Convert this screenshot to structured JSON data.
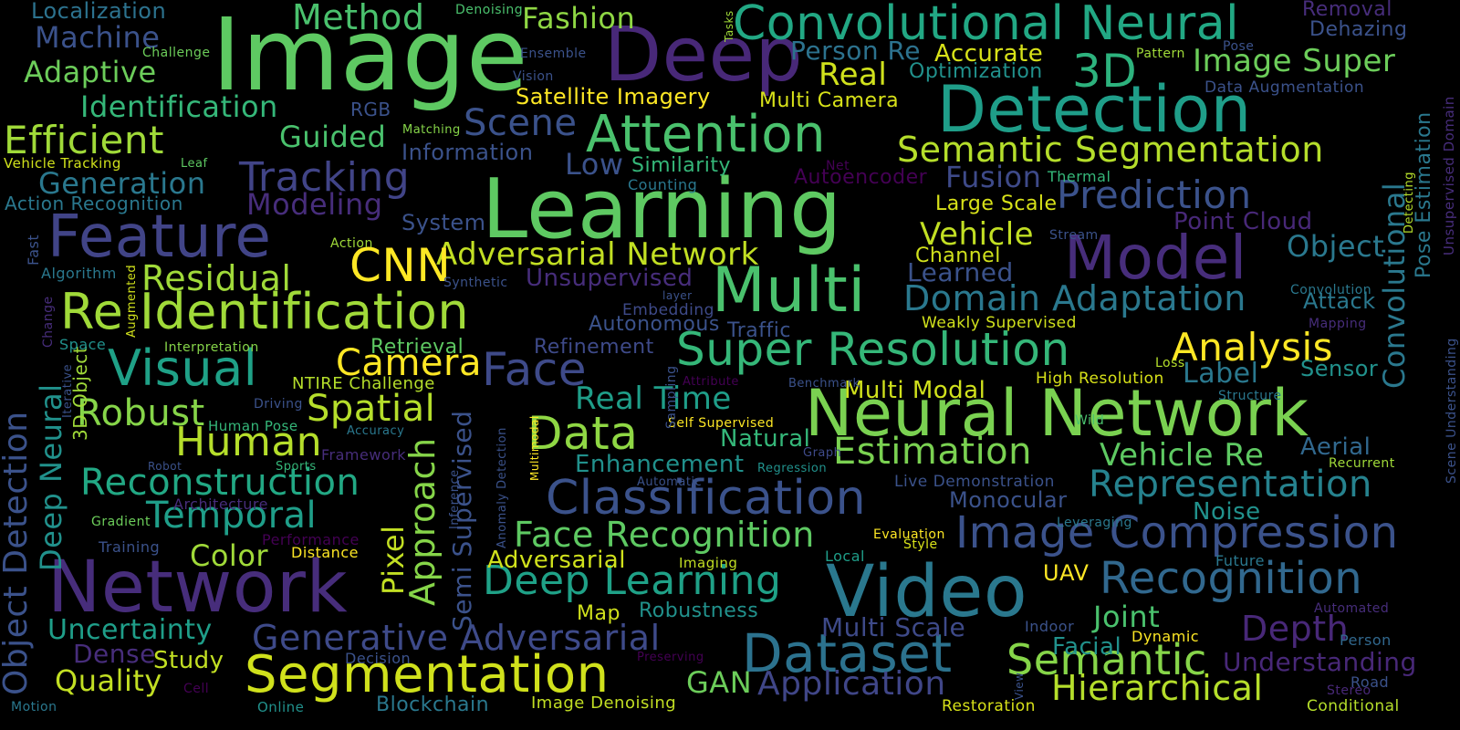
{
  "palette": [
    "#440154",
    "#3b528b",
    "#21918c",
    "#5ec962",
    "#fde725"
  ],
  "words": [
    {
      "text": "Image",
      "color": "#5ec962"
    },
    {
      "text": "Deep",
      "color": "#482878"
    },
    {
      "text": "Learning",
      "color": "#5ec962"
    },
    {
      "text": "Convolutional Neural",
      "color": "#22a884"
    },
    {
      "text": "Detection",
      "color": "#1f9e89"
    },
    {
      "text": "Neural Network",
      "color": "#7ad151"
    },
    {
      "text": "Network",
      "color": "#472d7b"
    },
    {
      "text": "Video",
      "color": "#2a788e"
    },
    {
      "text": "Feature",
      "color": "#414487"
    },
    {
      "text": "Multi",
      "color": "#4ac16d"
    },
    {
      "text": "Model",
      "color": "#472d7b"
    },
    {
      "text": "Re Identification",
      "color": "#a0da39"
    },
    {
      "text": "Attention",
      "color": "#4ac16d"
    },
    {
      "text": "Segmentation",
      "color": "#d0e11c"
    },
    {
      "text": "Classification",
      "color": "#3b528b"
    },
    {
      "text": "Dataset",
      "color": "#2c728e"
    },
    {
      "text": "Super Resolution",
      "color": "#35b779"
    },
    {
      "text": "Image Compression",
      "color": "#3b528b"
    },
    {
      "text": "Recognition",
      "color": "#31688e"
    },
    {
      "text": "Data",
      "color": "#8fd744"
    },
    {
      "text": "Visual",
      "color": "#1fa187"
    },
    {
      "text": "Face",
      "color": "#3e4a89"
    },
    {
      "text": "Semantic Segmentation",
      "color": "#b5de2b"
    },
    {
      "text": "Adversarial Network",
      "color": "#c2df23"
    },
    {
      "text": "Prediction",
      "color": "#3b528b"
    },
    {
      "text": "Estimation",
      "color": "#7ad151"
    },
    {
      "text": "Semantic",
      "color": "#86d549"
    },
    {
      "text": "Tracking",
      "color": "#414487"
    },
    {
      "text": "Efficient",
      "color": "#a0da39"
    },
    {
      "text": "Domain Adaptation",
      "color": "#2a788e"
    },
    {
      "text": "Representation",
      "color": "#26828e"
    },
    {
      "text": "Face Recognition",
      "color": "#5ec962"
    },
    {
      "text": "Deep Learning",
      "color": "#1fa187"
    },
    {
      "text": "Generative Adversarial",
      "color": "#3e4a89"
    },
    {
      "text": "Reconstruction",
      "color": "#22a884"
    },
    {
      "text": "Method",
      "color": "#4ac16d"
    },
    {
      "text": "Fashion",
      "color": "#8fd744"
    },
    {
      "text": "3D",
      "color": "#2db27d"
    },
    {
      "text": "Image Super",
      "color": "#6ccd5a"
    },
    {
      "text": "Analysis",
      "color": "#fde725"
    },
    {
      "text": "Scene",
      "color": "#3b528b"
    },
    {
      "text": "Human",
      "color": "#b5de2b"
    },
    {
      "text": "Temporal",
      "color": "#1f9e89"
    },
    {
      "text": "Residual",
      "color": "#a0da39"
    },
    {
      "text": "Vehicle Re",
      "color": "#5ec962"
    },
    {
      "text": "Camera",
      "color": "#fde725"
    },
    {
      "text": "Spatial",
      "color": "#b5de2b"
    },
    {
      "text": "Robust",
      "color": "#86d549"
    },
    {
      "text": "Depth",
      "color": "#482878"
    },
    {
      "text": "Hierarchical",
      "color": "#b5de2b"
    },
    {
      "text": "Application",
      "color": "#404688"
    },
    {
      "text": "Real Time",
      "color": "#1f9e89"
    },
    {
      "text": "CNN",
      "color": "#fde725"
    },
    {
      "text": "Vehicle",
      "color": "#c2df23"
    },
    {
      "text": "Object",
      "color": "#2a788e"
    },
    {
      "text": "Uncertainty",
      "color": "#1f9e89"
    },
    {
      "text": "Quality",
      "color": "#c2df23"
    },
    {
      "text": "Guided",
      "color": "#4ac16d"
    },
    {
      "text": "Fusion",
      "color": "#3e4a89"
    },
    {
      "text": "Joint",
      "color": "#4ac16d"
    },
    {
      "text": "Color",
      "color": "#a0da39"
    },
    {
      "text": "Identification",
      "color": "#35b779"
    },
    {
      "text": "Generation",
      "color": "#2a788e"
    },
    {
      "text": "Modeling",
      "color": "#472d7b"
    },
    {
      "text": "Machine",
      "color": "#3b528b"
    },
    {
      "text": "Adaptive",
      "color": "#6ccd5a"
    },
    {
      "text": "Real",
      "color": "#d0e11c"
    },
    {
      "text": "Person Re",
      "color": "#2c728e"
    },
    {
      "text": "Accurate",
      "color": "#d8e219"
    },
    {
      "text": "Localization",
      "color": "#2c728e"
    },
    {
      "text": "Low",
      "color": "#3b528b"
    },
    {
      "text": "Information",
      "color": "#3b528b"
    },
    {
      "text": "Similarity",
      "color": "#35b779"
    },
    {
      "text": "Satellite Imagery",
      "color": "#fde725"
    },
    {
      "text": "Multi Camera",
      "color": "#d8e219"
    },
    {
      "text": "Optimization",
      "color": "#21918c"
    },
    {
      "text": "Enhancement",
      "color": "#21918c"
    },
    {
      "text": "Multi Scale",
      "color": "#3e4a89"
    },
    {
      "text": "Adversarial",
      "color": "#d0e11c"
    },
    {
      "text": "Robustness",
      "color": "#21918c"
    },
    {
      "text": "Blockchain",
      "color": "#2a788e"
    },
    {
      "text": "GAN",
      "color": "#6ccd5a"
    },
    {
      "text": "Label",
      "color": "#2a788e"
    },
    {
      "text": "Aerial",
      "color": "#31688e"
    },
    {
      "text": "Multi Modal",
      "color": "#d0e11c"
    },
    {
      "text": "Learned",
      "color": "#3b528b"
    },
    {
      "text": "Channel",
      "color": "#d0e11c"
    },
    {
      "text": "Large Scale",
      "color": "#d8e219"
    },
    {
      "text": "Point Cloud",
      "color": "#482878"
    },
    {
      "text": "Unsupervised",
      "color": "#472d7b"
    },
    {
      "text": "Autonomous",
      "color": "#3b528b"
    },
    {
      "text": "Retrieval",
      "color": "#5ec962"
    },
    {
      "text": "Refinement",
      "color": "#3e4a89"
    },
    {
      "text": "Natural",
      "color": "#35b779"
    },
    {
      "text": "Monocular",
      "color": "#3b528b"
    },
    {
      "text": "Noise",
      "color": "#21918c"
    },
    {
      "text": "Facial",
      "color": "#21918c"
    },
    {
      "text": "Understanding",
      "color": "#482878"
    },
    {
      "text": "Study",
      "color": "#c2df23"
    },
    {
      "text": "Dense",
      "color": "#472d7b"
    },
    {
      "text": "Sensor",
      "color": "#21918c"
    },
    {
      "text": "Attack",
      "color": "#2a788e"
    },
    {
      "text": "Pixel",
      "color": "#c2df23"
    },
    {
      "text": "Approach",
      "color": "#86d549"
    },
    {
      "text": "Semi Supervised",
      "color": "#3b528b"
    },
    {
      "text": "Object Detection",
      "color": "#3b528b"
    },
    {
      "text": "Deep Neural",
      "color": "#21918c"
    },
    {
      "text": "Pose Estimation",
      "color": "#2a788e"
    },
    {
      "text": "Convolutional",
      "color": "#2a788e"
    },
    {
      "text": "3D Object",
      "color": "#a0da39"
    },
    {
      "text": "Map",
      "color": "#d0e11c"
    },
    {
      "text": "UAV",
      "color": "#fde725"
    },
    {
      "text": "Removal",
      "color": "#472d7b"
    },
    {
      "text": "Dehazing",
      "color": "#3b528b"
    },
    {
      "text": "Data Augmentation",
      "color": "#3b528b"
    },
    {
      "text": "System",
      "color": "#3b528b"
    },
    {
      "text": "Autoencoder",
      "color": "#440154"
    },
    {
      "text": "Traffic",
      "color": "#3b528b"
    },
    {
      "text": "Embedding",
      "color": "#3e4a89"
    },
    {
      "text": "Weakly Supervised",
      "color": "#d0e11c"
    },
    {
      "text": "Live Demonstration",
      "color": "#3b528b"
    },
    {
      "text": "Image Denoising",
      "color": "#c2df23"
    },
    {
      "text": "Action Recognition",
      "color": "#2a788e"
    },
    {
      "text": "NTIRE Challenge",
      "color": "#b5de2b"
    },
    {
      "text": "Vehicle Tracking",
      "color": "#d0e11c"
    },
    {
      "text": "Self Supervised",
      "color": "#fde725"
    },
    {
      "text": "Restoration",
      "color": "#d8e219"
    },
    {
      "text": "Conditional",
      "color": "#b5de2b"
    },
    {
      "text": "Human Pose",
      "color": "#35b779"
    },
    {
      "text": "High Resolution",
      "color": "#d8e219"
    },
    {
      "text": "Evaluation",
      "color": "#fde725"
    },
    {
      "text": "Distance",
      "color": "#fde725"
    },
    {
      "text": "Decision",
      "color": "#3b528b"
    },
    {
      "text": "Framework",
      "color": "#472d7b"
    },
    {
      "text": "Interpretation",
      "color": "#86d549"
    },
    {
      "text": "Training",
      "color": "#3b528b"
    },
    {
      "text": "Performance",
      "color": "#440154"
    },
    {
      "text": "Architecture",
      "color": "#472d7b"
    },
    {
      "text": "Gradient",
      "color": "#6ccd5a"
    },
    {
      "text": "Algorithm",
      "color": "#2a788e"
    },
    {
      "text": "Space",
      "color": "#21918c"
    },
    {
      "text": "Action",
      "color": "#a0da39"
    },
    {
      "text": "Matching",
      "color": "#86d549"
    },
    {
      "text": "Leaf",
      "color": "#5ec962"
    },
    {
      "text": "RGB",
      "color": "#3b528b"
    },
    {
      "text": "Challenge",
      "color": "#6ccd5a"
    },
    {
      "text": "Denoising",
      "color": "#4ac16d"
    },
    {
      "text": "Ensemble",
      "color": "#3b528b"
    },
    {
      "text": "Vision",
      "color": "#3b528b"
    },
    {
      "text": "Net",
      "color": "#440154"
    },
    {
      "text": "Counting",
      "color": "#2a788e"
    },
    {
      "text": "Thermal",
      "color": "#35b779"
    },
    {
      "text": "Stream",
      "color": "#3b528b"
    },
    {
      "text": "Pattern",
      "color": "#a0da39"
    },
    {
      "text": "Pose",
      "color": "#3b528b"
    },
    {
      "text": "Convolution",
      "color": "#2a788e"
    },
    {
      "text": "Mapping",
      "color": "#472d7b"
    },
    {
      "text": "Loss",
      "color": "#b5de2b"
    },
    {
      "text": "Structure",
      "color": "#2a788e"
    },
    {
      "text": "Wild",
      "color": "#4ac16d"
    },
    {
      "text": "Recurrent",
      "color": "#a0da39"
    },
    {
      "text": "Leveraging",
      "color": "#2a788e"
    },
    {
      "text": "Future",
      "color": "#2a788e"
    },
    {
      "text": "Automated",
      "color": "#472d7b"
    },
    {
      "text": "Indoor",
      "color": "#3b528b"
    },
    {
      "text": "Dynamic",
      "color": "#fde725"
    },
    {
      "text": "Person",
      "color": "#31688e"
    },
    {
      "text": "Road",
      "color": "#3b528b"
    },
    {
      "text": "Stereo",
      "color": "#482878"
    },
    {
      "text": "Local",
      "color": "#1f9e89"
    },
    {
      "text": "Style",
      "color": "#d8e219"
    },
    {
      "text": "Imaging",
      "color": "#c2df23"
    },
    {
      "text": "Preserving",
      "color": "#440154"
    },
    {
      "text": "Online",
      "color": "#21918c"
    },
    {
      "text": "Cell",
      "color": "#440154"
    },
    {
      "text": "Motion",
      "color": "#2a788e"
    },
    {
      "text": "Regression",
      "color": "#21918c"
    },
    {
      "text": "Graph",
      "color": "#3e4a89"
    },
    {
      "text": "Benchmark",
      "color": "#3b528b"
    },
    {
      "text": "Attribute",
      "color": "#440154"
    },
    {
      "text": "Sampling",
      "color": "#3b528b"
    },
    {
      "text": "Automatic",
      "color": "#3b528b"
    },
    {
      "text": "Inference",
      "color": "#3b528b"
    },
    {
      "text": "Anomaly Detection",
      "color": "#3b528b"
    },
    {
      "text": "Multimodal",
      "color": "#fde725"
    },
    {
      "text": "Accuracy",
      "color": "#2a788e"
    },
    {
      "text": "Driving",
      "color": "#3b528b"
    },
    {
      "text": "Sports",
      "color": "#35b779"
    },
    {
      "text": "Robot",
      "color": "#3b528b"
    },
    {
      "text": "Synthetic",
      "color": "#3b528b"
    },
    {
      "text": "layer",
      "color": "#3b528b"
    },
    {
      "text": "Tasks",
      "color": "#a0da39"
    },
    {
      "text": "Fast",
      "color": "#3b528b"
    },
    {
      "text": "Change",
      "color": "#472d7b"
    },
    {
      "text": "Augmented",
      "color": "#d0e11c"
    },
    {
      "text": "Iterative",
      "color": "#3b528b"
    },
    {
      "text": "Detecting",
      "color": "#b5de2b"
    },
    {
      "text": "Unsupervised Domain",
      "color": "#472d7b"
    },
    {
      "text": "Scene Understanding",
      "color": "#3b528b"
    },
    {
      "text": "View",
      "color": "#3b528b"
    }
  ]
}
